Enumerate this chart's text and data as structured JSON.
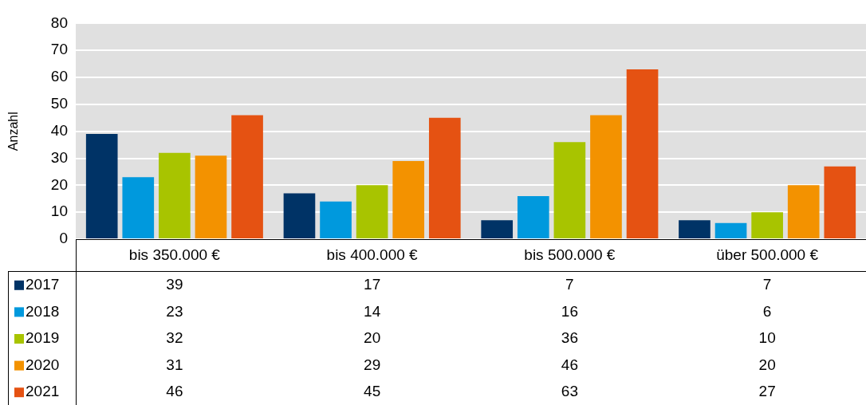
{
  "chart_data": {
    "type": "bar",
    "ylabel": "Anzahl",
    "categories": [
      "bis 350.000 €",
      "bis 400.000 €",
      "bis 500.000 €",
      "über 500.000 €"
    ],
    "series": [
      {
        "name": "2017",
        "color": "#003366",
        "values": [
          39,
          17,
          7,
          7
        ]
      },
      {
        "name": "2018",
        "color": "#0099dd",
        "values": [
          23,
          14,
          16,
          6
        ]
      },
      {
        "name": "2019",
        "color": "#a8c400",
        "values": [
          32,
          20,
          36,
          10
        ]
      },
      {
        "name": "2020",
        "color": "#f39200",
        "values": [
          31,
          29,
          46,
          20
        ]
      },
      {
        "name": "2021",
        "color": "#e55212",
        "values": [
          46,
          45,
          63,
          27
        ]
      }
    ],
    "ylim": [
      0,
      80
    ],
    "yticks": [
      0,
      10,
      20,
      30,
      40,
      50,
      60,
      70,
      80
    ],
    "grid": "y",
    "legend": "bottom left",
    "data_labels": true
  }
}
